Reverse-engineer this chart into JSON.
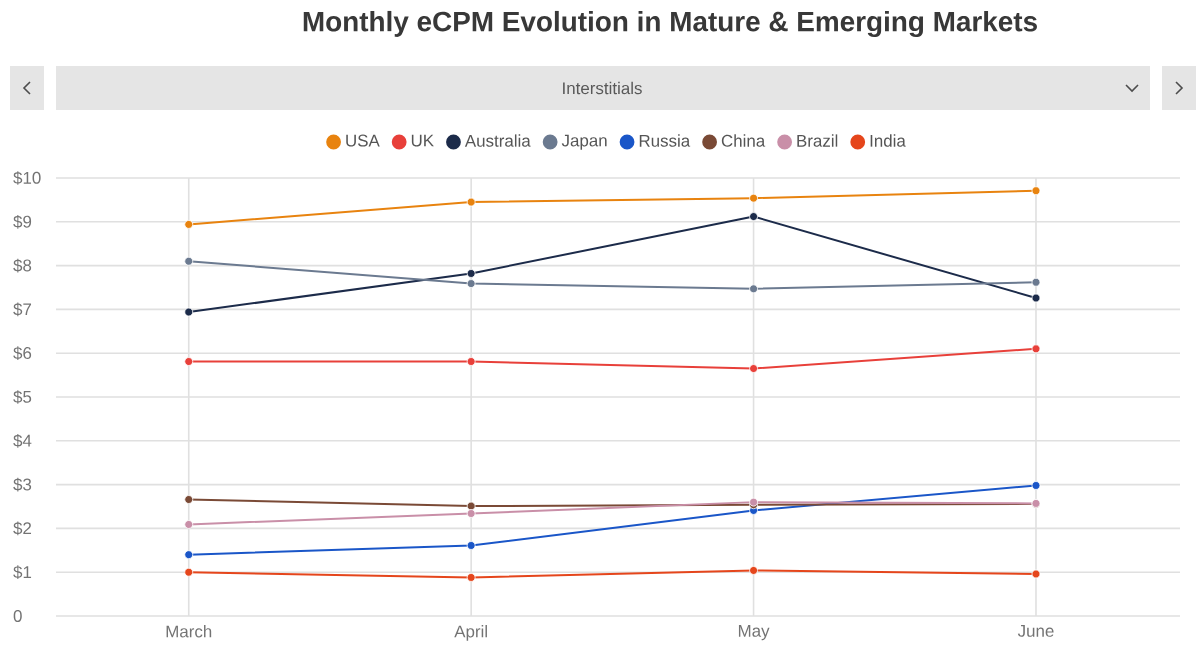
{
  "chart_data": {
    "type": "line",
    "title": "Monthly eCPM Evolution in Mature & Emerging Markets",
    "subtitle": "Interstitials",
    "categories": [
      "March",
      "April",
      "May",
      "June"
    ],
    "series": [
      {
        "name": "USA",
        "color": "#e8830f",
        "values": [
          8.94,
          9.45,
          9.54,
          9.71
        ]
      },
      {
        "name": "UK",
        "color": "#e8403a",
        "values": [
          5.81,
          5.81,
          5.65,
          6.1
        ]
      },
      {
        "name": "Australia",
        "color": "#1c2b4a",
        "values": [
          6.94,
          7.82,
          9.12,
          7.26
        ]
      },
      {
        "name": "Japan",
        "color": "#6b7a90",
        "values": [
          8.1,
          7.59,
          7.47,
          7.62
        ]
      },
      {
        "name": "Russia",
        "color": "#1a56c8",
        "values": [
          1.4,
          1.61,
          2.41,
          2.98
        ]
      },
      {
        "name": "China",
        "color": "#7a4a36",
        "values": [
          2.66,
          2.51,
          2.54,
          2.56
        ]
      },
      {
        "name": "Brazil",
        "color": "#c98fa8",
        "values": [
          2.09,
          2.34,
          2.6,
          2.57
        ]
      },
      {
        "name": "India",
        "color": "#e5461c",
        "values": [
          1.0,
          0.88,
          1.04,
          0.96
        ]
      }
    ],
    "ylim": [
      0,
      10
    ],
    "yticks": [
      {
        "value": 0,
        "label": "0"
      },
      {
        "value": 1,
        "label": "$1"
      },
      {
        "value": 2,
        "label": "$2"
      },
      {
        "value": 3,
        "label": "$3"
      },
      {
        "value": 4,
        "label": "$4"
      },
      {
        "value": 5,
        "label": "$5"
      },
      {
        "value": 6,
        "label": "$6"
      },
      {
        "value": 7,
        "label": "$7"
      },
      {
        "value": 8,
        "label": "$8"
      },
      {
        "value": 9,
        "label": "$9"
      },
      {
        "value": 10,
        "label": "$10"
      }
    ],
    "grid": true,
    "legend": "top",
    "marker": "circle",
    "line_style": "solid"
  }
}
